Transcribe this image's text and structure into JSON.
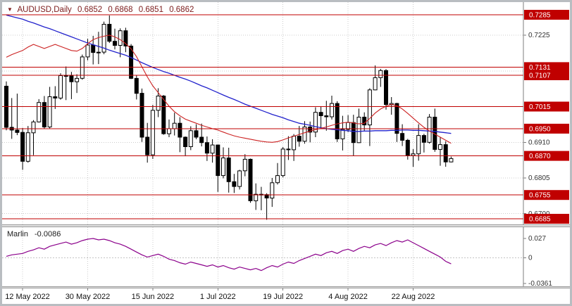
{
  "header": {
    "dropdown_glyph": "▼",
    "symbol": "AUDUSD,Daily",
    "open": "0.6852",
    "high": "0.6868",
    "low": "0.6851",
    "close": "0.6862"
  },
  "colors": {
    "level_red": "#c00000",
    "level_label_text": "#ffffff",
    "ma_blue": "#2222cc",
    "ma_red": "#cc2222",
    "indicator_purple": "#8b008b",
    "title_maroon": "#7c1c1c",
    "grid": "#cccccc",
    "axis_line": "#7d7d7d",
    "axis_text": "#333333",
    "bull_body": "#ffffff",
    "bear_body": "#000000"
  },
  "chart_data": {
    "type": "candlestick",
    "title": "AUDUSD,Daily",
    "timeframe": "Daily",
    "ylim": [
      0.6685,
      0.7285
    ],
    "grid": true,
    "x_ticks": {
      "labels": [
        "12 May 2022",
        "30 May 2022",
        "15 Jun 2022",
        "1 Jul 2022",
        "19 Jul 2022",
        "4 Aug 2022",
        "22 Aug 2022"
      ],
      "indices": [
        3,
        15,
        27,
        39,
        51,
        63,
        75
      ]
    },
    "grid_levels": [
      0.7225,
      0.712,
      0.7015,
      0.691,
      0.6805,
      0.67
    ],
    "y_axis_plain_labels": [
      {
        "text": "0.7225",
        "price": 0.7225
      },
      {
        "text": "0.6910",
        "price": 0.691
      },
      {
        "text": "0.6805",
        "price": 0.6805
      },
      {
        "text": "0.6700",
        "price": 0.67
      }
    ],
    "levels_red": [
      {
        "text": "0.7285",
        "price": 0.7285
      },
      {
        "text": "0.7131",
        "price": 0.7131
      },
      {
        "text": "0.7107",
        "price": 0.7107
      },
      {
        "text": "0.7015",
        "price": 0.7015
      },
      {
        "text": "0.6950",
        "price": 0.695
      },
      {
        "text": "0.6870",
        "price": 0.687
      },
      {
        "text": "0.6755",
        "price": 0.6755
      },
      {
        "text": "0.6685",
        "price": 0.6685
      }
    ],
    "dates": [
      "9 May",
      "10 May",
      "11 May",
      "12 May",
      "13 May",
      "16 May",
      "17 May",
      "18 May",
      "19 May",
      "20 May",
      "23 May",
      "24 May",
      "25 May",
      "26 May",
      "27 May",
      "30 May",
      "31 May",
      "1 Jun",
      "2 Jun",
      "3 Jun",
      "6 Jun",
      "7 Jun",
      "8 Jun",
      "9 Jun",
      "10 Jun",
      "13 Jun",
      "14 Jun",
      "15 Jun",
      "16 Jun",
      "17 Jun",
      "20 Jun",
      "21 Jun",
      "22 Jun",
      "23 Jun",
      "24 Jun",
      "27 Jun",
      "28 Jun",
      "29 Jun",
      "30 Jun",
      "1 Jul",
      "4 Jul",
      "5 Jul",
      "6 Jul",
      "7 Jul",
      "8 Jul",
      "11 Jul",
      "12 Jul",
      "13 Jul",
      "14 Jul",
      "15 Jul",
      "18 Jul",
      "19 Jul",
      "20 Jul",
      "21 Jul",
      "22 Jul",
      "25 Jul",
      "26 Jul",
      "27 Jul",
      "28 Jul",
      "29 Jul",
      "1 Aug",
      "2 Aug",
      "3 Aug",
      "4 Aug",
      "5 Aug",
      "8 Aug",
      "9 Aug",
      "10 Aug",
      "11 Aug",
      "12 Aug",
      "15 Aug",
      "16 Aug",
      "17 Aug",
      "18 Aug",
      "19 Aug",
      "22 Aug",
      "23 Aug",
      "24 Aug",
      "25 Aug",
      "26 Aug",
      "29 Aug",
      "30 Aug",
      "31 Aug"
    ],
    "open": [
      0.7075,
      0.6954,
      0.6946,
      0.6939,
      0.6854,
      0.6938,
      0.697,
      0.7027,
      0.6955,
      0.7044,
      0.704,
      0.7106,
      0.7105,
      0.7088,
      0.7098,
      0.7161,
      0.7196,
      0.7174,
      0.7175,
      0.7257,
      0.7207,
      0.7195,
      0.7238,
      0.7193,
      0.7098,
      0.7054,
      0.6925,
      0.6873,
      0.7004,
      0.7046,
      0.6935,
      0.695,
      0.6966,
      0.6925,
      0.6897,
      0.6944,
      0.6925,
      0.6909,
      0.6878,
      0.6902,
      0.6812,
      0.6864,
      0.6794,
      0.678,
      0.6826,
      0.686,
      0.6738,
      0.6757,
      0.6756,
      0.6746,
      0.6791,
      0.6812,
      0.689,
      0.6888,
      0.6928,
      0.6913,
      0.6955,
      0.694,
      0.6998,
      0.6988,
      0.6985,
      0.7024,
      0.692,
      0.6948,
      0.6968,
      0.6909,
      0.6984,
      0.6961,
      0.7064,
      0.71,
      0.7121,
      0.7021,
      0.7024,
      0.6936,
      0.6916,
      0.6871,
      0.6876,
      0.693,
      0.691,
      0.6984,
      0.6889,
      0.6903,
      0.6852
    ],
    "high": [
      0.7089,
      0.704,
      0.7053,
      0.6952,
      0.6958,
      0.6975,
      0.7037,
      0.7046,
      0.7073,
      0.7075,
      0.7113,
      0.7133,
      0.7117,
      0.711,
      0.7168,
      0.7214,
      0.7223,
      0.7235,
      0.7265,
      0.7283,
      0.7244,
      0.7245,
      0.7247,
      0.7199,
      0.7107,
      0.7068,
      0.6967,
      0.702,
      0.7069,
      0.7049,
      0.6977,
      0.6997,
      0.6984,
      0.6927,
      0.6957,
      0.6963,
      0.6965,
      0.6927,
      0.6919,
      0.6903,
      0.6895,
      0.6894,
      0.6817,
      0.6829,
      0.6875,
      0.6862,
      0.6789,
      0.6779,
      0.676,
      0.6805,
      0.6849,
      0.6896,
      0.6928,
      0.6934,
      0.6958,
      0.6972,
      0.6971,
      0.7013,
      0.7014,
      0.7032,
      0.7047,
      0.7031,
      0.6988,
      0.699,
      0.6991,
      0.7009,
      0.6998,
      0.7069,
      0.7136,
      0.7126,
      0.7125,
      0.7043,
      0.7026,
      0.6963,
      0.692,
      0.689,
      0.6963,
      0.6935,
      0.6993,
      0.7009,
      0.6924,
      0.6913,
      0.6868
    ],
    "low": [
      0.6945,
      0.692,
      0.6931,
      0.6829,
      0.685,
      0.6872,
      0.6968,
      0.695,
      0.6951,
      0.7008,
      0.7035,
      0.7034,
      0.7037,
      0.7055,
      0.7094,
      0.7151,
      0.7139,
      0.714,
      0.7169,
      0.7202,
      0.7183,
      0.716,
      0.7175,
      0.7096,
      0.7036,
      0.6911,
      0.685,
      0.6861,
      0.6984,
      0.6932,
      0.6925,
      0.693,
      0.6881,
      0.6869,
      0.6887,
      0.6919,
      0.6898,
      0.6855,
      0.685,
      0.6764,
      0.6804,
      0.6762,
      0.6761,
      0.6771,
      0.681,
      0.6732,
      0.6711,
      0.671,
      0.6682,
      0.672,
      0.6786,
      0.6807,
      0.6858,
      0.6855,
      0.6897,
      0.6906,
      0.691,
      0.6925,
      0.6952,
      0.6944,
      0.6977,
      0.6911,
      0.6886,
      0.694,
      0.687,
      0.6908,
      0.6944,
      0.6899,
      0.7063,
      0.7073,
      0.7006,
      0.6991,
      0.6911,
      0.6899,
      0.6859,
      0.6838,
      0.6856,
      0.688,
      0.6906,
      0.6882,
      0.6841,
      0.6838,
      0.6851
    ],
    "close": [
      0.6954,
      0.6946,
      0.6939,
      0.6854,
      0.6938,
      0.697,
      0.7027,
      0.6955,
      0.7044,
      0.704,
      0.7106,
      0.7105,
      0.7088,
      0.7098,
      0.7161,
      0.7196,
      0.7174,
      0.7175,
      0.7257,
      0.7207,
      0.7195,
      0.7238,
      0.7193,
      0.7098,
      0.7054,
      0.6925,
      0.6873,
      0.7004,
      0.7046,
      0.6935,
      0.695,
      0.6966,
      0.6925,
      0.6897,
      0.6944,
      0.6925,
      0.6909,
      0.6878,
      0.6902,
      0.6812,
      0.6864,
      0.6794,
      0.678,
      0.6826,
      0.686,
      0.6738,
      0.6757,
      0.6756,
      0.6746,
      0.6791,
      0.6812,
      0.689,
      0.6888,
      0.6928,
      0.6913,
      0.6955,
      0.694,
      0.6998,
      0.6988,
      0.6985,
      0.7024,
      0.692,
      0.6948,
      0.6968,
      0.6909,
      0.6984,
      0.6961,
      0.7064,
      0.71,
      0.7121,
      0.7021,
      0.7024,
      0.6936,
      0.6916,
      0.6871,
      0.6876,
      0.693,
      0.691,
      0.6984,
      0.6889,
      0.6903,
      0.6852,
      0.6862
    ],
    "series": [
      {
        "name": "ma-slow",
        "color": "#2222cc",
        "values": [
          0.7284,
          0.728,
          0.7276,
          0.7272,
          0.7266,
          0.7261,
          0.7255,
          0.7249,
          0.7244,
          0.7238,
          0.7232,
          0.7226,
          0.722,
          0.7214,
          0.7208,
          0.7202,
          0.7197,
          0.7192,
          0.7187,
          0.7181,
          0.7176,
          0.7171,
          0.7166,
          0.7159,
          0.7152,
          0.7144,
          0.7137,
          0.713,
          0.7124,
          0.7118,
          0.7113,
          0.7107,
          0.7101,
          0.7096,
          0.709,
          0.7083,
          0.7076,
          0.707,
          0.7063,
          0.7056,
          0.7049,
          0.7042,
          0.7036,
          0.7029,
          0.7022,
          0.7016,
          0.701,
          0.7004,
          0.6998,
          0.6992,
          0.6987,
          0.6982,
          0.6976,
          0.6971,
          0.6966,
          0.6963,
          0.696,
          0.6956,
          0.6953,
          0.695,
          0.6948,
          0.6947,
          0.6945,
          0.6944,
          0.6942,
          0.6942,
          0.6943,
          0.6943,
          0.6944,
          0.6944,
          0.6944,
          0.6945,
          0.6945,
          0.6946,
          0.6946,
          0.6945,
          0.6945,
          0.6944,
          0.6943,
          0.6942,
          0.694,
          0.6938,
          0.6936
        ]
      },
      {
        "name": "ma-fast",
        "color": "#cc2222",
        "values": [
          0.716,
          0.7168,
          0.7174,
          0.718,
          0.719,
          0.7198,
          0.7192,
          0.7186,
          0.7192,
          0.7198,
          0.7192,
          0.7186,
          0.718,
          0.7178,
          0.7186,
          0.72,
          0.7212,
          0.7218,
          0.7222,
          0.7225,
          0.722,
          0.7212,
          0.72,
          0.7185,
          0.7162,
          0.7132,
          0.7102,
          0.7076,
          0.7056,
          0.7036,
          0.7016,
          0.7,
          0.6988,
          0.6978,
          0.6972,
          0.6966,
          0.696,
          0.6955,
          0.695,
          0.6946,
          0.694,
          0.6934,
          0.6929,
          0.6925,
          0.6922,
          0.6919,
          0.6916,
          0.6913,
          0.6911,
          0.691,
          0.6912,
          0.6917,
          0.6923,
          0.6928,
          0.6933,
          0.6938,
          0.6943,
          0.6947,
          0.6951,
          0.6955,
          0.696,
          0.6964,
          0.6967,
          0.6969,
          0.6967,
          0.6964,
          0.6966,
          0.698,
          0.6996,
          0.7008,
          0.7016,
          0.7021,
          0.7018,
          0.7008,
          0.6995,
          0.6981,
          0.6967,
          0.6954,
          0.6943,
          0.6934,
          0.6925,
          0.6916,
          0.6907
        ]
      }
    ],
    "indicator": {
      "name": "Marlin",
      "current_value": "-0.0086",
      "color": "#8b008b",
      "axis_labels": [
        {
          "text": "0.027",
          "value": 0.027
        },
        {
          "text": "0",
          "value": 0
        },
        {
          "text": "-0.0361",
          "value": -0.0361
        }
      ],
      "values": [
        0.002,
        0.004,
        0.005,
        0.006,
        0.009,
        0.011,
        0.014,
        0.012,
        0.016,
        0.018,
        0.02,
        0.022,
        0.019,
        0.021,
        0.024,
        0.026,
        0.027,
        0.025,
        0.026,
        0.024,
        0.021,
        0.019,
        0.016,
        0.012,
        0.008,
        0.004,
        0.001,
        0.003,
        0.005,
        0.002,
        -0.002,
        -0.004,
        -0.007,
        -0.009,
        -0.006,
        -0.008,
        -0.01,
        -0.012,
        -0.01,
        -0.013,
        -0.011,
        -0.014,
        -0.016,
        -0.013,
        -0.015,
        -0.017,
        -0.015,
        -0.018,
        -0.014,
        -0.011,
        -0.013,
        -0.009,
        -0.006,
        -0.008,
        -0.004,
        -0.001,
        0.002,
        0.005,
        0.003,
        0.007,
        0.009,
        0.006,
        0.01,
        0.012,
        0.009,
        0.013,
        0.016,
        0.014,
        0.018,
        0.02,
        0.017,
        0.021,
        0.024,
        0.022,
        0.025,
        0.021,
        0.017,
        0.013,
        0.009,
        0.005,
        0.001,
        -0.005,
        -0.0086
      ]
    }
  }
}
